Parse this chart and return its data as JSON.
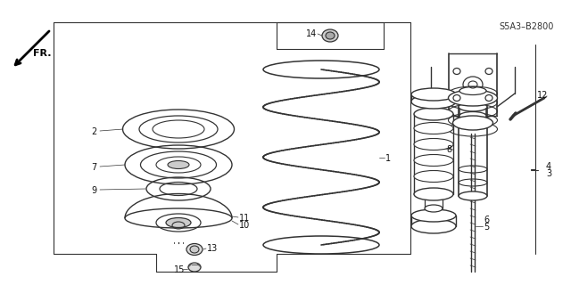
{
  "background_color": "#ffffff",
  "line_color": "#333333",
  "text_color": "#111111",
  "diagram_code": "S5A3–B2800",
  "figsize": [
    6.4,
    3.2
  ],
  "dpi": 100
}
